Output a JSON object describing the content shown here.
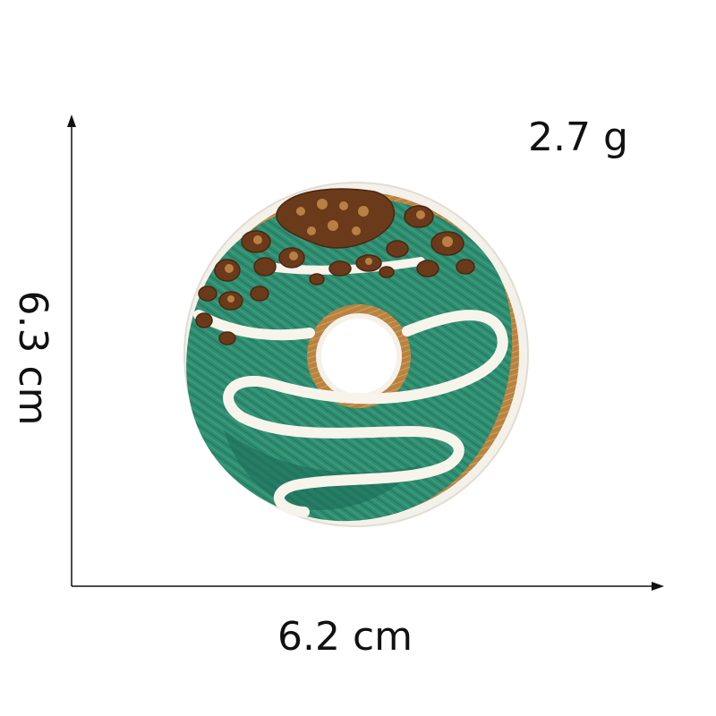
{
  "product": {
    "name": "embroidered donut patch",
    "weight_label": "2.7 g",
    "width_label": "6.2 cm",
    "height_label": "6.3 cm"
  },
  "colors": {
    "background": "#ffffff",
    "axis": "#111111",
    "patch_border": "#f4f1ea",
    "dough": "#b9833f",
    "icing": "#2f8d70",
    "icing_dark": "#1d6c56",
    "drizzle": "#f7f4ec",
    "sprinkles": "#6b3a1a",
    "sprinkle_highlight": "#b88042"
  },
  "icons": {
    "x_axis_arrow": "arrow-right-icon",
    "y_axis_arrow": "arrow-up-icon"
  }
}
